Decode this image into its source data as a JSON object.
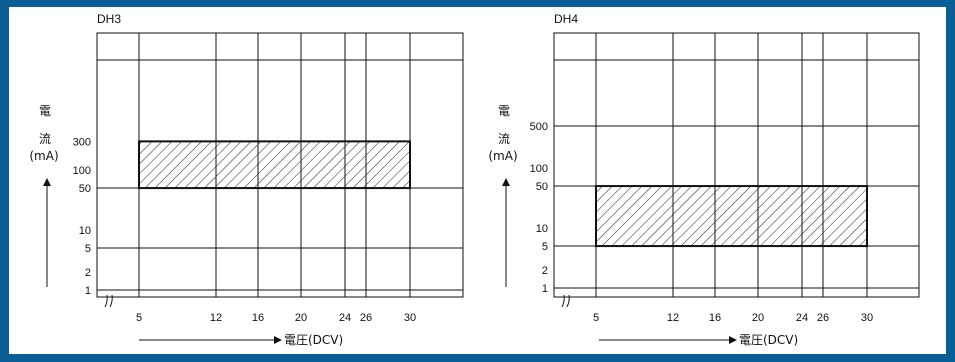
{
  "colors": {
    "frame": "#0a5e96",
    "panel": "#ffffff",
    "ink": "#111111"
  },
  "y_label": {
    "line1": "電",
    "line2": "流",
    "unit": "(mA)"
  },
  "x_label": "電圧(DCV)",
  "chart_data": [
    {
      "type": "area",
      "title": "DH3",
      "xlabel": "電圧(DCV)",
      "ylabel": "電流(mA)",
      "x_ticks": [
        5,
        12,
        16,
        20,
        24,
        26,
        30
      ],
      "y_ticks": [
        1,
        2,
        5,
        10,
        50,
        100,
        300
      ],
      "y_grid": [
        1,
        5,
        50
      ],
      "y_scale": "log",
      "ylim": [
        0.8,
        800
      ],
      "region": {
        "x_min": 5,
        "x_max": 30,
        "y_min": 50,
        "y_max": 300,
        "fill": "hatched"
      },
      "x_axis_break": true,
      "grid": true
    },
    {
      "type": "area",
      "title": "DH4",
      "xlabel": "電圧(DCV)",
      "ylabel": "電流(mA)",
      "x_ticks": [
        5,
        12,
        16,
        20,
        24,
        26,
        30
      ],
      "y_ticks": [
        1,
        2,
        5,
        10,
        50,
        100,
        500
      ],
      "y_grid": [
        1,
        5,
        50,
        500
      ],
      "y_scale": "log",
      "ylim": [
        0.8,
        1000
      ],
      "region": {
        "x_min": 5,
        "x_max": 30,
        "y_min": 5,
        "y_max": 50,
        "fill": "hatched"
      },
      "x_axis_break": true,
      "grid": true
    }
  ]
}
